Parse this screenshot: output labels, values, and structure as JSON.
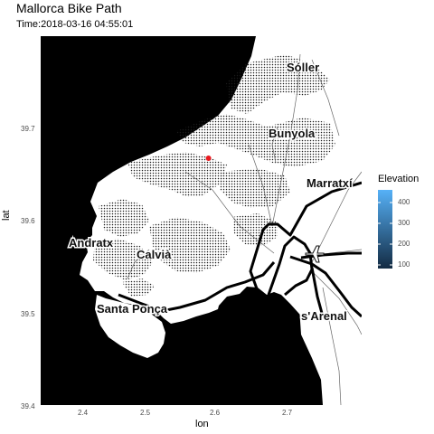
{
  "title": "Mallorca Bike Path",
  "subtitle": "Time:2018-03-16 04:55:01",
  "axes": {
    "x_label": "lon",
    "y_label": "lat",
    "x_ticks": [
      "2.4",
      "2.5",
      "2.6",
      "2.7"
    ],
    "y_ticks": [
      "39.7",
      "39.6",
      "39.5",
      "39.4"
    ],
    "x_range": [
      2.35,
      2.79
    ],
    "y_range": [
      39.4,
      39.79
    ]
  },
  "places": [
    "Sóller",
    "Bunyola",
    "Marratxí",
    "Andratx",
    "Calvià",
    "Santa Ponça",
    "s'Arenal"
  ],
  "legend": {
    "title": "Elevation",
    "labels": [
      "400",
      "300",
      "200",
      "100"
    ],
    "range": [
      90,
      470
    ],
    "color_low": "#132b43",
    "color_high": "#56b1f7"
  },
  "current_point": {
    "lon": 2.58,
    "lat": 39.661,
    "color": "#e8191f"
  },
  "colors": {
    "sea": "#000000",
    "land": "#ffffff"
  }
}
